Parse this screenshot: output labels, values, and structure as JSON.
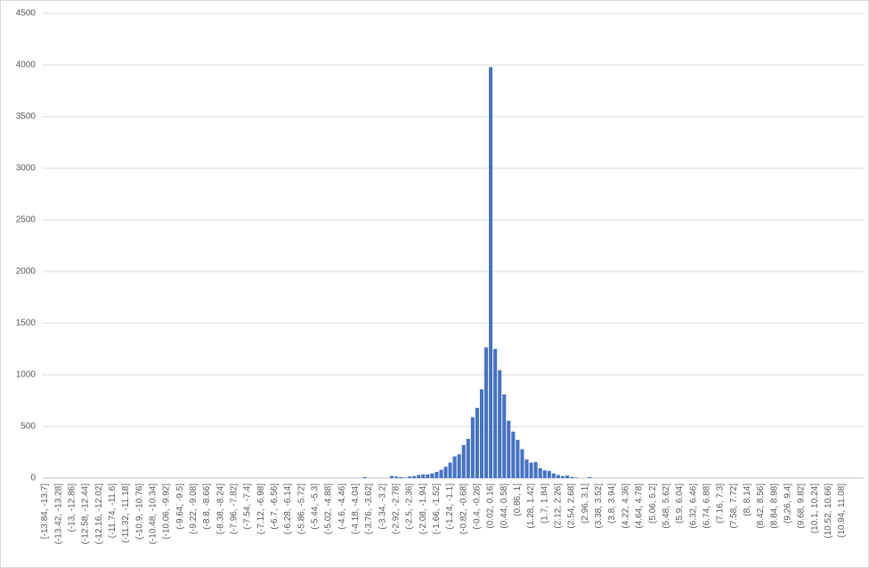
{
  "chart_data": {
    "type": "bar",
    "categories": [
      "[-13.84, -13.7]",
      null,
      null,
      "(-13.42, -13.28]",
      null,
      null,
      "(-13, -12.86]",
      null,
      null,
      "(-12.58, -12.44]",
      null,
      null,
      "(-12.16, -12.02]",
      null,
      null,
      "(-11.74, -11.6]",
      null,
      null,
      "(-11.32, -11.18]",
      null,
      null,
      "(-10.9, -10.76]",
      null,
      null,
      "(-10.48, -10.34]",
      null,
      null,
      "(-10.06, -9.92]",
      null,
      null,
      "(-9.64, -9.5]",
      null,
      null,
      "(-9.22, -9.08]",
      null,
      null,
      "(-8.8, -8.66]",
      null,
      null,
      "(-8.38, -8.24]",
      null,
      null,
      "(-7.96, -7.82]",
      null,
      null,
      "(-7.54, -7.4]",
      null,
      null,
      "(-7.12, -6.98]",
      null,
      null,
      "(-6.7, -6.56]",
      null,
      null,
      "(-6.28, -6.14]",
      null,
      null,
      "(-5.86, -5.72]",
      null,
      null,
      "(-5.44, -5.3]",
      null,
      null,
      "(-5.02, -4.88]",
      null,
      null,
      "(-4.6, -4.46]",
      null,
      null,
      "(-4.18, -4.04]",
      null,
      null,
      "(-3.76, -3.62]",
      null,
      null,
      "(-3.34, -3.2]",
      null,
      null,
      "(-2.92, -2.78]",
      null,
      null,
      "(-2.5, -2.36]",
      null,
      null,
      "(-2.08, -1.94]",
      null,
      null,
      "(-1.66, -1.52]",
      null,
      null,
      "(-1.24, -1.1]",
      null,
      null,
      "(-0.82, -0.68]",
      null,
      null,
      "(-0.4, -0.26]",
      null,
      null,
      "(0.02, 0.16]",
      null,
      null,
      "(0.44, 0.58]",
      null,
      null,
      "(0.86, 1]",
      null,
      null,
      "(1.28, 1.42]",
      null,
      null,
      "(1.7, 1.84]",
      null,
      null,
      "(2.12, 2.26]",
      null,
      null,
      "(2.54, 2.68]",
      null,
      null,
      "(2.96, 3.1]",
      null,
      null,
      "(3.38, 3.52]",
      null,
      null,
      "(3.8, 3.94]",
      null,
      null,
      "(4.22, 4.36]",
      null,
      null,
      "(4.64, 4.78]",
      null,
      null,
      "(5.06, 5.2]",
      null,
      null,
      "(5.48, 5.62]",
      null,
      null,
      "(5.9, 6.04]",
      null,
      null,
      "(6.32, 6.46]",
      null,
      null,
      "(6.74, 6.88]",
      null,
      null,
      "(7.16, 7.3]",
      null,
      null,
      "(7.58, 7.72]",
      null,
      null,
      "(8, 8.14]",
      null,
      null,
      "(8.42, 8.56]",
      null,
      null,
      "(8.84, 8.98]",
      null,
      null,
      "(9.26, 9.4]",
      null,
      null,
      "(9.68, 9.82]",
      null,
      null,
      "(10.1, 10.24]",
      null,
      null,
      "(10.52, 10.66]",
      null,
      null,
      "(10.94, 11.08]"
    ],
    "values": [
      0,
      0,
      0,
      0,
      0,
      0,
      0,
      0,
      0,
      0,
      0,
      0,
      0,
      0,
      0,
      0,
      0,
      0,
      0,
      0,
      0,
      0,
      0,
      0,
      0,
      0,
      0,
      0,
      0,
      0,
      0,
      0,
      0,
      0,
      0,
      0,
      0,
      0,
      0,
      0,
      0,
      0,
      0,
      0,
      0,
      0,
      0,
      0,
      0,
      0,
      0,
      0,
      0,
      0,
      0,
      0,
      0,
      0,
      0,
      0,
      0,
      0,
      0,
      0,
      0,
      0,
      0,
      0,
      0,
      0,
      0,
      10,
      0,
      0,
      0,
      0,
      0,
      20,
      15,
      10,
      5,
      15,
      20,
      30,
      35,
      35,
      45,
      60,
      80,
      110,
      150,
      210,
      230,
      320,
      380,
      590,
      680,
      860,
      1265,
      3980,
      1250,
      1045,
      810,
      555,
      450,
      370,
      280,
      180,
      150,
      155,
      95,
      75,
      70,
      45,
      30,
      20,
      25,
      10,
      5,
      0,
      0,
      10,
      0,
      0,
      0,
      0,
      0,
      0,
      0,
      0,
      0,
      0,
      0,
      0,
      0,
      0,
      0,
      0,
      0,
      0,
      0,
      0,
      0,
      0,
      0,
      0,
      0,
      0,
      0,
      0,
      0,
      0,
      0,
      0,
      0,
      0,
      0,
      0,
      0,
      0,
      0,
      0,
      0,
      0,
      0,
      0,
      0,
      0,
      0,
      0,
      0,
      0,
      0,
      0,
      0,
      0,
      0,
      0
    ],
    "color": "#4472c4",
    "ylim": [
      0,
      4500
    ],
    "yticks": [
      0,
      500,
      1000,
      1500,
      2000,
      2500,
      3000,
      3500,
      4000,
      4500
    ],
    "grid": true
  }
}
